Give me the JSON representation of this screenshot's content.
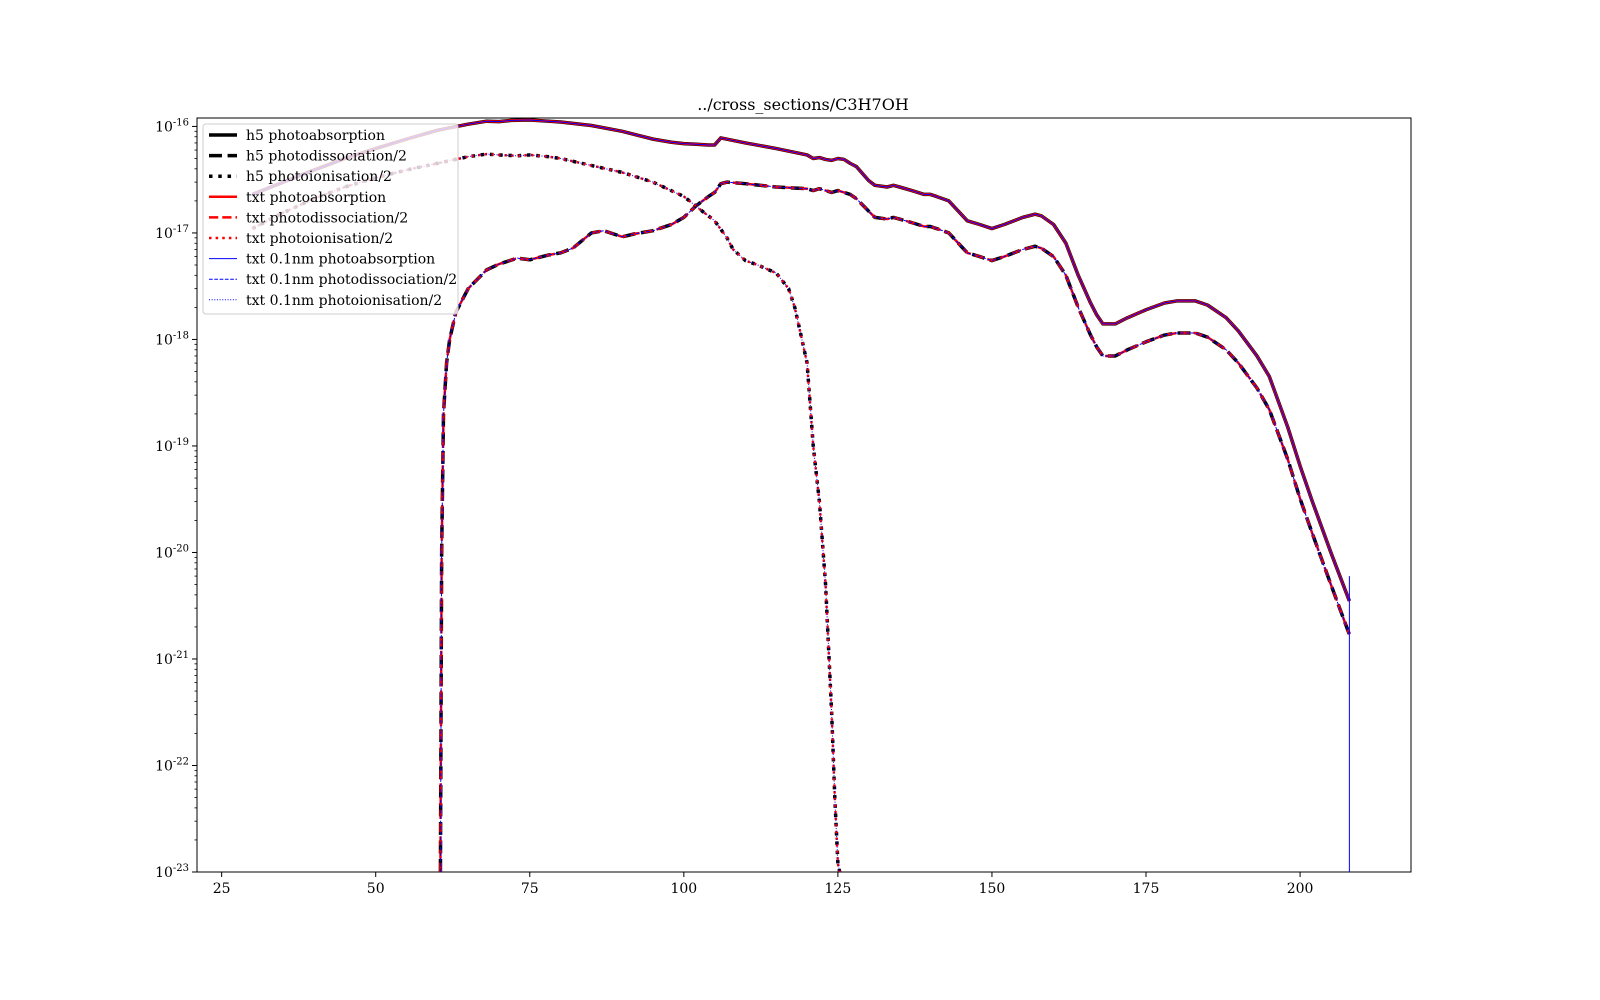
{
  "chart_data": {
    "type": "line",
    "title": "../cross_sections/C3H7OH",
    "xlabel": "",
    "ylabel": "",
    "xlim": [
      21,
      218
    ],
    "ylim": [
      1e-23,
      1.2e-16
    ],
    "yscale": "log",
    "grid": false,
    "legend_position": "top-left",
    "xticks": [
      25,
      50,
      75,
      100,
      125,
      150,
      175,
      200
    ],
    "xtick_labels": [
      "25",
      "50",
      "75",
      "100",
      "125",
      "150",
      "175",
      "200"
    ],
    "yticks": [
      {
        "value": 1e-16,
        "base": "10",
        "exp": "-16"
      },
      {
        "value": 1e-17,
        "base": "10",
        "exp": "-17"
      },
      {
        "value": 1e-18,
        "base": "10",
        "exp": "-18"
      },
      {
        "value": 1e-19,
        "base": "10",
        "exp": "-19"
      },
      {
        "value": 1e-20,
        "base": "10",
        "exp": "-20"
      },
      {
        "value": 1e-21,
        "base": "10",
        "exp": "-21"
      },
      {
        "value": 1e-22,
        "base": "10",
        "exp": "-22"
      },
      {
        "value": 1e-23,
        "base": "10",
        "exp": "-23"
      }
    ],
    "colors": {
      "h5": "#000000",
      "txt": "#ff0000",
      "txt01": "#0000ff"
    },
    "legend": [
      {
        "label": "h5 photoabsorption",
        "color": "#000000",
        "style": "solid",
        "width": 3.5
      },
      {
        "label": "h5 photodissociation/2",
        "color": "#000000",
        "style": "dashed",
        "width": 3.5
      },
      {
        "label": "h5 photoionisation/2",
        "color": "#000000",
        "style": "dotted",
        "width": 3.5
      },
      {
        "label": "txt photoabsorption",
        "color": "#ff0000",
        "style": "solid",
        "width": 2.5
      },
      {
        "label": "txt photodissociation/2",
        "color": "#ff0000",
        "style": "dashed",
        "width": 2.5
      },
      {
        "label": "txt photoionisation/2",
        "color": "#ff0000",
        "style": "dotted",
        "width": 2.5
      },
      {
        "label": "txt 0.1nm photoabsorption",
        "color": "#0000ff",
        "style": "solid",
        "width": 1
      },
      {
        "label": "txt 0.1nm photodissociation/2",
        "color": "#0000ff",
        "style": "dashed",
        "width": 1
      },
      {
        "label": "txt 0.1nm photoionisation/2",
        "color": "#0000ff",
        "style": "dotted",
        "width": 1
      }
    ],
    "series": [
      {
        "key": "absorption",
        "x": [
          30,
          35,
          40,
          45,
          50,
          55,
          60,
          62,
          65,
          68,
          70,
          72,
          75,
          78,
          80,
          85,
          90,
          95,
          98,
          100,
          102,
          104,
          105,
          106,
          110,
          115,
          120,
          121,
          122,
          123,
          124,
          125,
          126,
          127,
          128,
          130,
          131,
          133,
          134,
          135,
          137,
          139,
          140,
          141,
          143,
          145,
          146,
          148,
          150,
          152,
          155,
          157,
          158,
          160,
          162,
          164,
          166,
          167,
          168,
          169,
          170,
          172,
          175,
          178,
          180,
          183,
          185,
          188,
          190,
          193,
          195,
          198,
          200,
          202,
          205,
          208
        ],
        "y": [
          2.3e-17,
          3e-17,
          3.9e-17,
          5e-17,
          6.2e-17,
          7.6e-17,
          9.2e-17,
          9.7e-17,
          1.05e-16,
          1.12e-16,
          1.11e-16,
          1.14e-16,
          1.15e-16,
          1.12e-16,
          1.1e-16,
          1.02e-16,
          9e-17,
          7.6e-17,
          7.1e-17,
          6.9e-17,
          6.8e-17,
          6.7e-17,
          6.7e-17,
          7.8e-17,
          7e-17,
          6.2e-17,
          5.4e-17,
          5e-17,
          5.1e-17,
          4.9e-17,
          4.8e-17,
          5e-17,
          4.9e-17,
          4.5e-17,
          4.2e-17,
          3.1e-17,
          2.8e-17,
          2.7e-17,
          2.8e-17,
          2.7e-17,
          2.5e-17,
          2.3e-17,
          2.3e-17,
          2.2e-17,
          2e-17,
          1.5e-17,
          1.3e-17,
          1.2e-17,
          1.1e-17,
          1.2e-17,
          1.4e-17,
          1.5e-17,
          1.45e-17,
          1.2e-17,
          8e-18,
          4e-18,
          2.2e-18,
          1.7e-18,
          1.4e-18,
          1.4e-18,
          1.4e-18,
          1.6e-18,
          1.9e-18,
          2.2e-18,
          2.3e-18,
          2.3e-18,
          2.1e-18,
          1.6e-18,
          1.2e-18,
          7e-19,
          4.5e-19,
          1.5e-19,
          6.5e-20,
          3e-20,
          1e-20,
          3.5e-21
        ]
      },
      {
        "key": "dissociation",
        "x": [
          60.5,
          60.7,
          61,
          61.5,
          62,
          63,
          65,
          68,
          70,
          73,
          75,
          78,
          80,
          82,
          85,
          87,
          90,
          92,
          95,
          98,
          100,
          102,
          104,
          105,
          106,
          107,
          110,
          115,
          120,
          121,
          122,
          123,
          124,
          125,
          126,
          127,
          128,
          130,
          131,
          133,
          134,
          135,
          137,
          139,
          140,
          141,
          143,
          145,
          146,
          148,
          150,
          152,
          155,
          157,
          158,
          160,
          162,
          164,
          166,
          167,
          168,
          169,
          170,
          172,
          175,
          178,
          180,
          183,
          185,
          188,
          190,
          193,
          195,
          198,
          200,
          202,
          205,
          208
        ],
        "y": [
          1e-23,
          1e-20,
          2e-19,
          6e-19,
          1e-18,
          1.8e-18,
          3e-18,
          4.5e-18,
          5.1e-18,
          5.8e-18,
          5.6e-18,
          6.2e-18,
          6.5e-18,
          7.2e-18,
          1e-17,
          1.05e-17,
          9.2e-18,
          9.8e-18,
          1.05e-17,
          1.2e-17,
          1.4e-17,
          1.8e-17,
          2.2e-17,
          2.4e-17,
          2.9e-17,
          3e-17,
          2.9e-17,
          2.7e-17,
          2.6e-17,
          2.5e-17,
          2.6e-17,
          2.5e-17,
          2.4e-17,
          2.5e-17,
          2.4e-17,
          2.3e-17,
          2.1e-17,
          1.6e-17,
          1.4e-17,
          1.35e-17,
          1.4e-17,
          1.35e-17,
          1.25e-17,
          1.15e-17,
          1.15e-17,
          1.1e-17,
          1e-17,
          7.5e-18,
          6.5e-18,
          6e-18,
          5.5e-18,
          6e-18,
          7e-18,
          7.5e-18,
          7.2e-18,
          6e-18,
          4e-18,
          2e-18,
          1.1e-18,
          8.5e-19,
          7e-19,
          7e-19,
          7e-19,
          8e-19,
          9.5e-19,
          1.1e-18,
          1.15e-18,
          1.15e-18,
          1.05e-18,
          8e-19,
          6e-19,
          3.5e-19,
          2.2e-19,
          7.5e-20,
          3.2e-20,
          1.5e-20,
          5e-21,
          1.7e-21
        ]
      },
      {
        "key": "ionisation",
        "x": [
          30,
          35,
          40,
          45,
          50,
          55,
          60,
          65,
          68,
          70,
          73,
          75,
          78,
          80,
          85,
          90,
          95,
          100,
          103,
          105,
          107,
          108,
          110,
          112,
          115,
          117,
          118,
          119,
          120,
          121,
          122,
          123,
          124,
          124.5,
          125,
          125.3,
          125.6
        ],
        "y": [
          1.1e-17,
          1.55e-17,
          2.1e-17,
          2.7e-17,
          3.3e-17,
          3.9e-17,
          4.5e-17,
          5.2e-17,
          5.5e-17,
          5.4e-17,
          5.3e-17,
          5.4e-17,
          5.2e-17,
          5e-17,
          4.3e-17,
          3.7e-17,
          3e-17,
          2.2e-17,
          1.6e-17,
          1.3e-17,
          9e-18,
          7e-18,
          5.5e-18,
          5e-18,
          4.2e-18,
          3e-18,
          2e-18,
          1.1e-18,
          6e-19,
          1e-19,
          3e-20,
          5e-21,
          3e-22,
          5e-23,
          1.2e-23,
          1e-23,
          1e-23
        ]
      },
      {
        "key": "drop-208",
        "x": [
          208,
          208
        ],
        "y": [
          6e-21,
          1e-23
        ]
      }
    ]
  }
}
